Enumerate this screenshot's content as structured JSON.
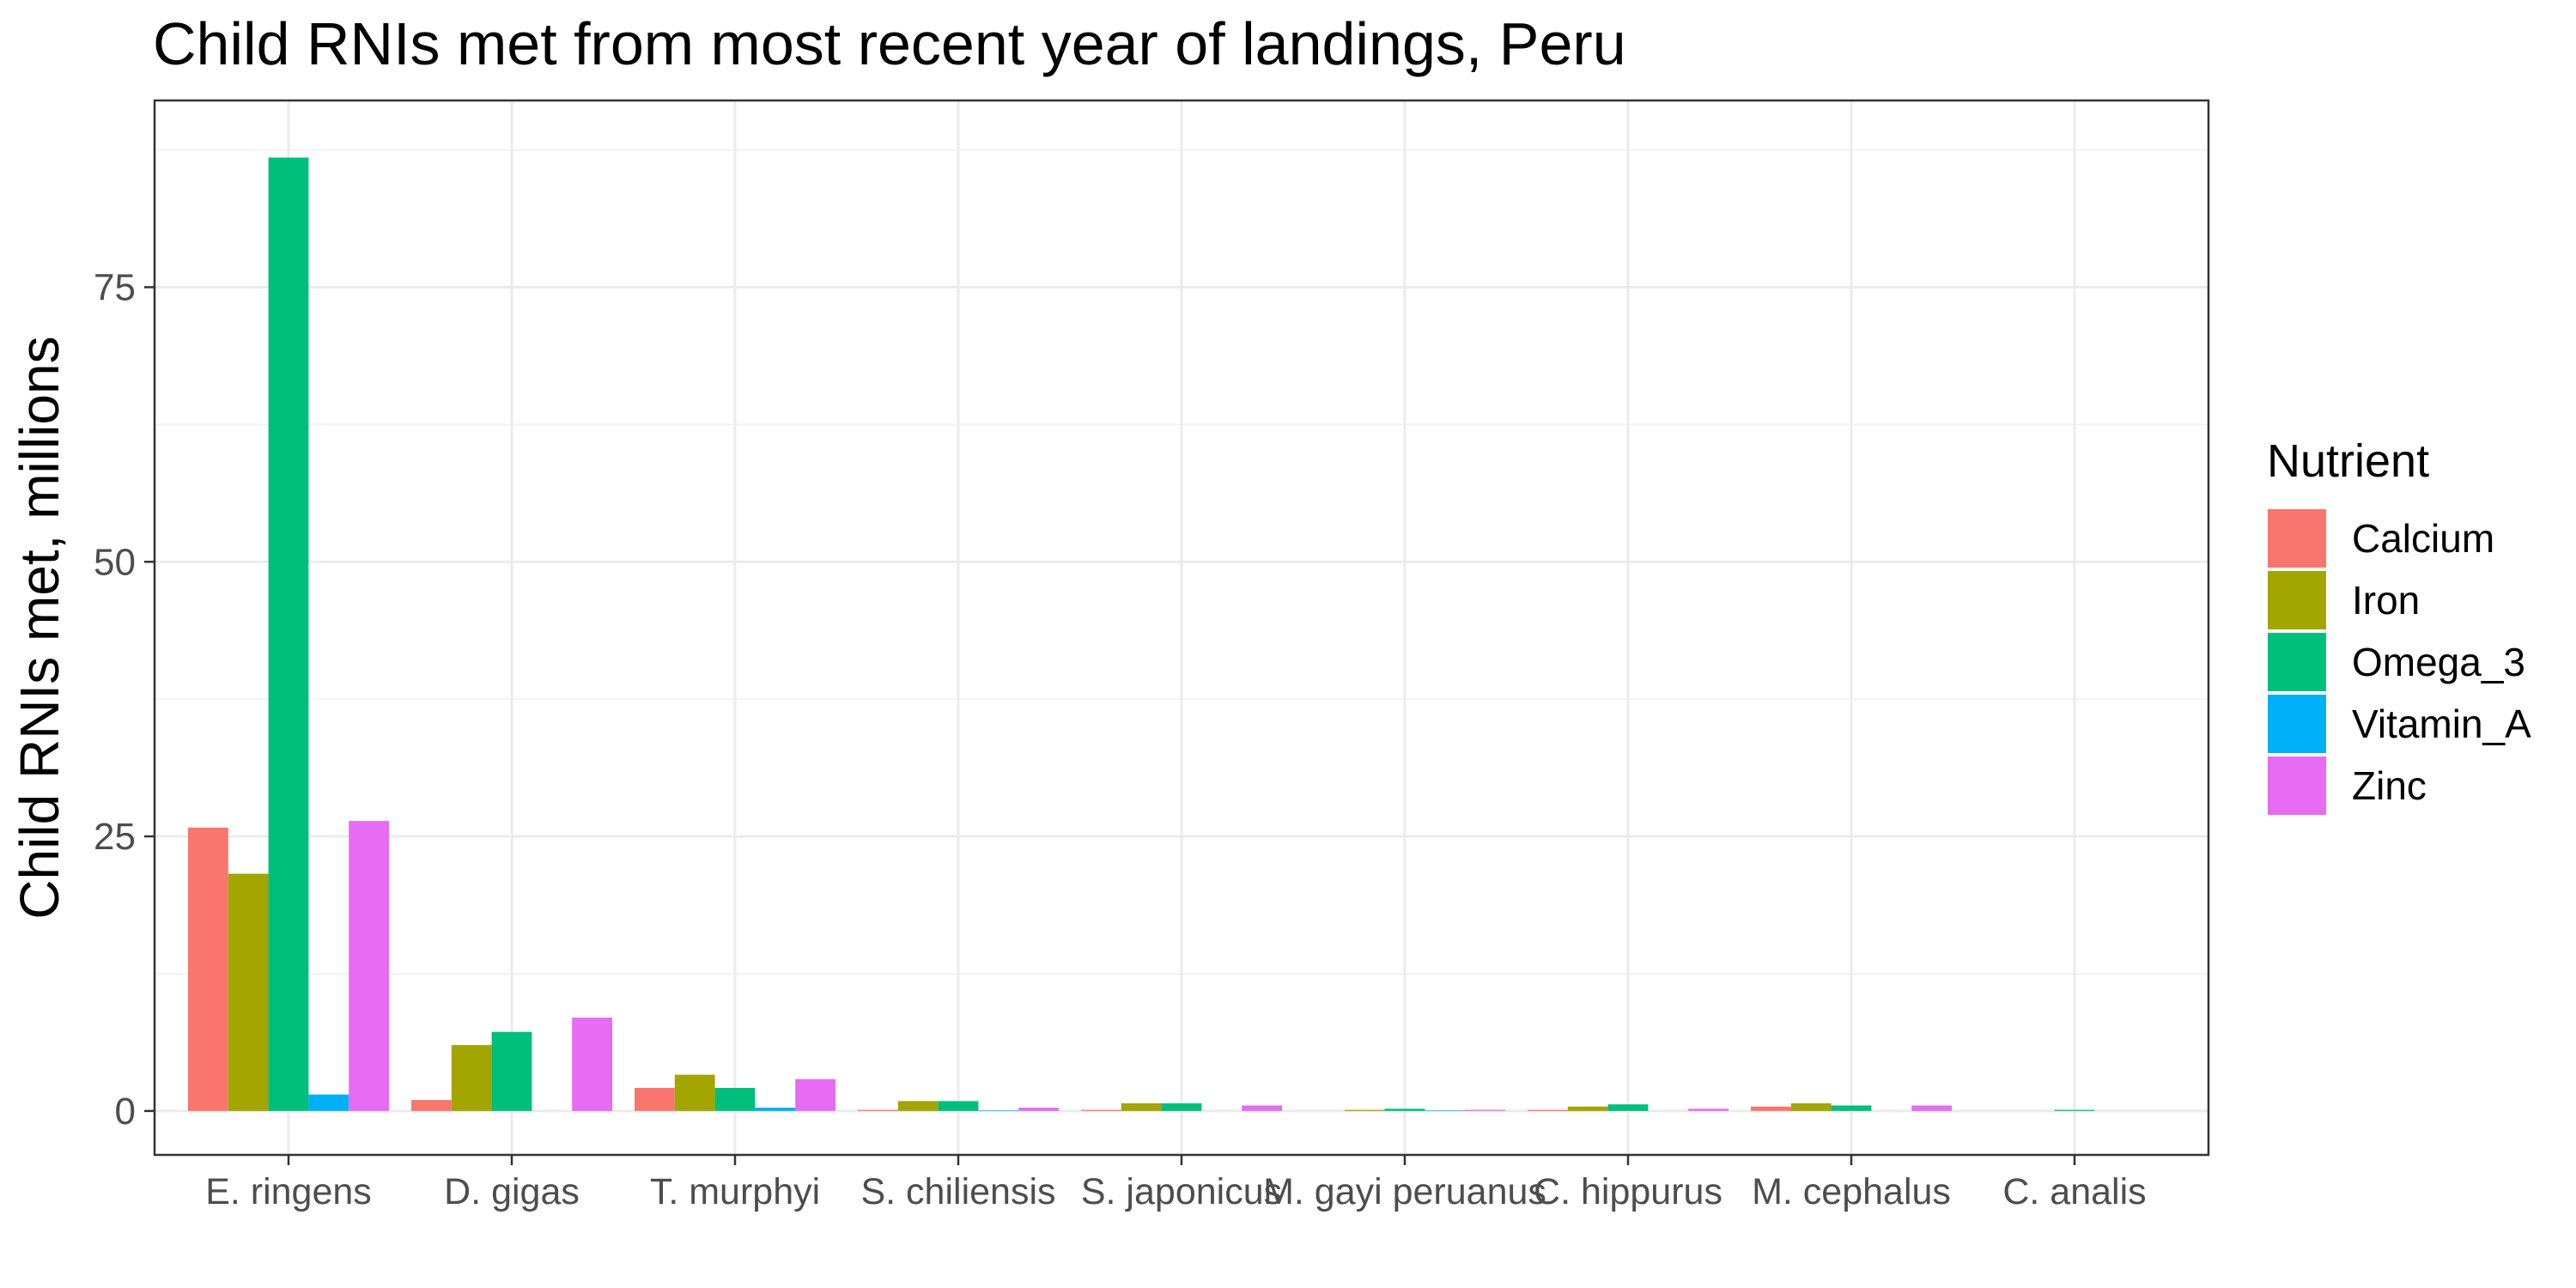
{
  "chart_data": {
    "type": "bar",
    "title": "Child RNIs met from most recent year of landings, Peru",
    "xlabel": "",
    "ylabel": "Child RNIs met, millions",
    "ylim": [
      -4,
      92
    ],
    "yticks": [
      0,
      25,
      50,
      75
    ],
    "grid": true,
    "legend_position": "right",
    "legend_title": "Nutrient",
    "categories": [
      "E. ringens",
      "D. gigas",
      "T. murphyi",
      "S. chiliensis",
      "S. japonicus",
      "M. gayi peruanus",
      "C. hippurus",
      "M. cephalus",
      "C. analis"
    ],
    "series": [
      {
        "name": "Calcium",
        "color": "#F8766D",
        "values": [
          25.8,
          1.0,
          2.1,
          0.1,
          0.1,
          0.0,
          0.1,
          0.4,
          0.0
        ]
      },
      {
        "name": "Iron",
        "color": "#A3A500",
        "values": [
          21.6,
          6.0,
          3.3,
          0.9,
          0.7,
          0.1,
          0.4,
          0.7,
          0.0
        ]
      },
      {
        "name": "Omega_3",
        "color": "#00BF7D",
        "values": [
          86.8,
          7.2,
          2.1,
          0.9,
          0.7,
          0.2,
          0.6,
          0.5,
          0.1
        ]
      },
      {
        "name": "Vitamin_A",
        "color": "#00B0F6",
        "values": [
          1.5,
          0.0,
          0.3,
          0.05,
          0.0,
          0.05,
          0.0,
          0.0,
          0.0
        ]
      },
      {
        "name": "Zinc",
        "color": "#E76BF3",
        "values": [
          26.4,
          8.5,
          2.9,
          0.3,
          0.5,
          0.1,
          0.2,
          0.5,
          0.0
        ]
      }
    ]
  }
}
